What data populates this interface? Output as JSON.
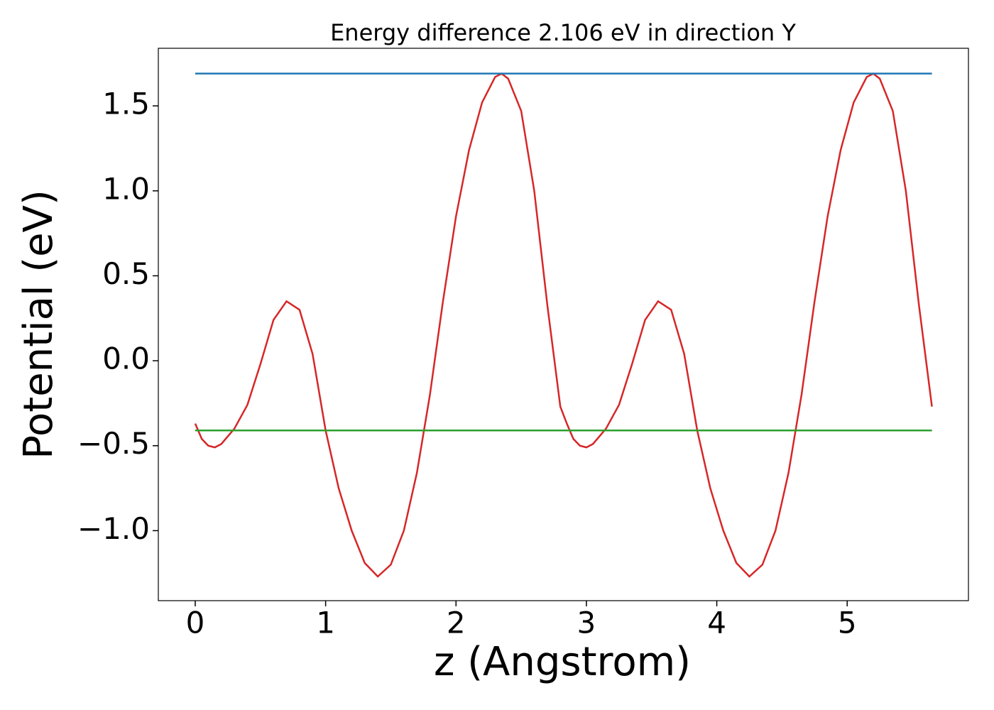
{
  "chart_data": {
    "type": "line",
    "title": "Energy difference 2.106 eV in direction Y",
    "xlabel": "z (Angstrom)",
    "ylabel": "Potential (eV)",
    "series": [
      {
        "color": "#d62728",
        "x": [
          0,
          0.05,
          0.1,
          0.15,
          0.2,
          0.3,
          0.4,
          0.5,
          0.6,
          0.7,
          0.8,
          0.9,
          1.0,
          1.1,
          1.2,
          1.3,
          1.4,
          1.5,
          1.6,
          1.7,
          1.8,
          1.9,
          2.0,
          2.1,
          2.2,
          2.3,
          2.35,
          2.4,
          2.5,
          2.6,
          2.7,
          2.8,
          2.85,
          2.9,
          2.95,
          3.0,
          3.05,
          3.15,
          3.25,
          3.35,
          3.45,
          3.55,
          3.65,
          3.75,
          3.85,
          3.95,
          4.05,
          4.15,
          4.25,
          4.35,
          4.45,
          4.55,
          4.65,
          4.75,
          4.85,
          4.95,
          5.05,
          5.15,
          5.2,
          5.25,
          5.35,
          5.45,
          5.55,
          5.65
        ],
        "values": [
          -0.37,
          -0.46,
          -0.5,
          -0.51,
          -0.49,
          -0.4,
          -0.26,
          -0.02,
          0.24,
          0.35,
          0.3,
          0.04,
          -0.41,
          -0.75,
          -1.0,
          -1.19,
          -1.27,
          -1.2,
          -1.0,
          -0.66,
          -0.2,
          0.35,
          0.85,
          1.24,
          1.52,
          1.67,
          1.69,
          1.66,
          1.47,
          1.0,
          0.33,
          -0.27,
          -0.37,
          -0.46,
          -0.5,
          -0.51,
          -0.49,
          -0.4,
          -0.26,
          -0.02,
          0.24,
          0.35,
          0.3,
          0.04,
          -0.41,
          -0.75,
          -1.0,
          -1.19,
          -1.27,
          -1.2,
          -1.0,
          -0.66,
          -0.2,
          0.35,
          0.85,
          1.24,
          1.52,
          1.67,
          1.69,
          1.66,
          1.47,
          1.0,
          0.33,
          -0.27
        ]
      },
      {
        "color": "#1f77b4",
        "x": [
          0,
          5.65
        ],
        "values": [
          1.69,
          1.69
        ]
      },
      {
        "color": "#2ca02c",
        "x": [
          0,
          5.65
        ],
        "values": [
          -0.41,
          -0.41
        ]
      }
    ],
    "xlim": [
      -0.283,
      5.93
    ],
    "ylim": [
      -1.412,
      1.839
    ],
    "xticks": [
      0,
      1,
      2,
      3,
      4,
      5
    ],
    "yticks": [
      {
        "value": -1.0,
        "label": "−1.0"
      },
      {
        "value": -0.5,
        "label": "−0.5"
      },
      {
        "value": 0.0,
        "label": "0.0"
      },
      0.5,
      {
        "value": 1.0,
        "label": "1.0"
      },
      1.5
    ]
  }
}
